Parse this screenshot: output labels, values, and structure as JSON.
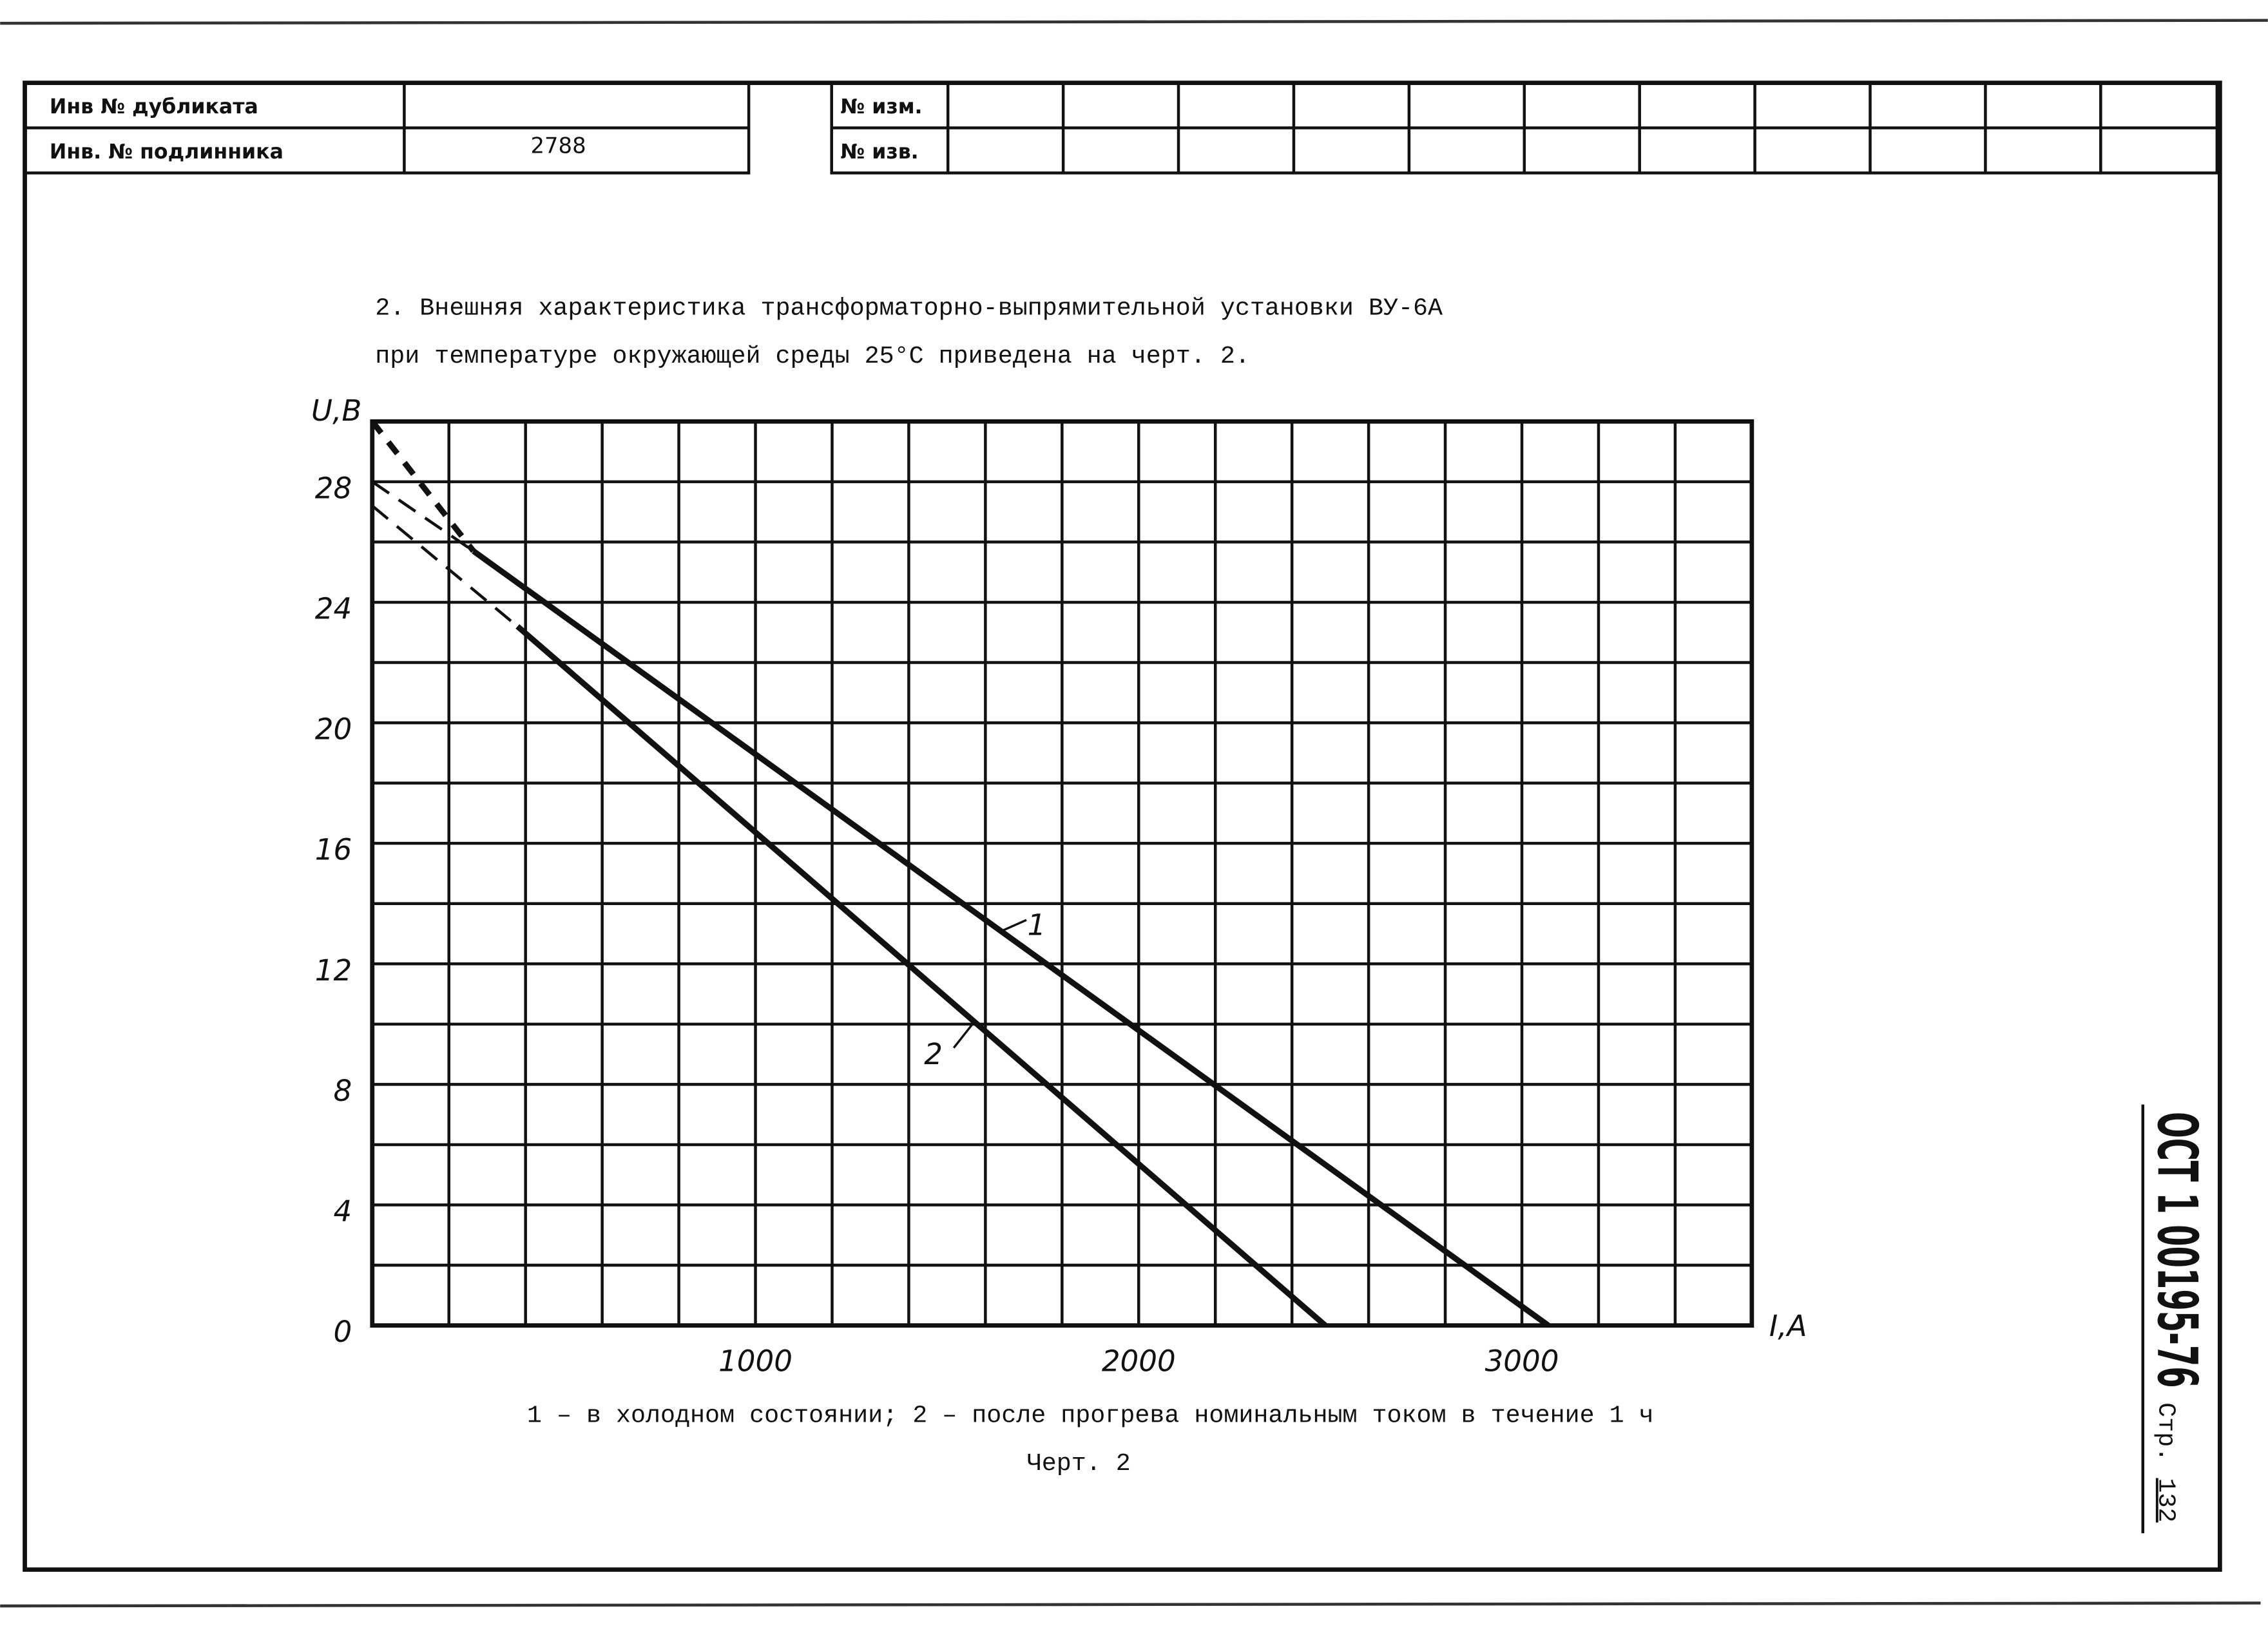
{
  "header": {
    "left_rows": [
      {
        "label": "Инв № дубликата"
      },
      {
        "label": "Инв. № подлинника",
        "value": "2788"
      }
    ],
    "right_labels": [
      "№ изм.",
      "№ изв."
    ]
  },
  "paragraph": [
    "2. Внешняя характеристика трансформаторно-выпрямительной установки ВУ-6А",
    "при температуре окружающей среды 25°С приведена на черт. 2."
  ],
  "chart_data": {
    "type": "line",
    "xlabel": "I,A",
    "ylabel": "U,B",
    "xlim": [
      0,
      3600
    ],
    "ylim": [
      0,
      30
    ],
    "xticks": [
      1000,
      2000,
      3000
    ],
    "yticks": [
      0,
      4,
      8,
      12,
      16,
      20,
      24,
      28
    ],
    "xgrid": [
      0,
      200,
      400,
      600,
      800,
      1000,
      1200,
      1400,
      1600,
      1800,
      2000,
      2200,
      2400,
      2600,
      2800,
      3000,
      3200,
      3400,
      3600
    ],
    "ygrid": [
      0,
      2,
      4,
      6,
      8,
      10,
      12,
      14,
      16,
      18,
      20,
      22,
      24,
      26,
      28,
      30
    ],
    "grid": true,
    "color": "#111111",
    "series": [
      {
        "x": [
          264,
          3069
        ],
        "values": [
          25.7,
          0
        ],
        "style": "solid"
      },
      {
        "x": [
          379,
          2487
        ],
        "values": [
          23.2,
          0
        ],
        "style": "solid"
      },
      {
        "x": [
          0,
          264
        ],
        "values": [
          30,
          25.7
        ],
        "style": "dashed"
      },
      {
        "x": [
          0,
          264
        ],
        "values": [
          28,
          25.7
        ],
        "style": "dashed-thin"
      },
      {
        "x": [
          0,
          379
        ],
        "values": [
          27.2,
          23.2
        ],
        "style": "dashed-thin"
      }
    ],
    "annotations": [
      "1",
      "2"
    ]
  },
  "caption": "1 – в холодном состоянии; 2 – после прогрева номинальным током в течение 1 ч",
  "figure_label": "Черт. 2",
  "stamp": {
    "code": "ОСТ 1 00195-76",
    "page_label": "Стр.",
    "page": "132"
  }
}
